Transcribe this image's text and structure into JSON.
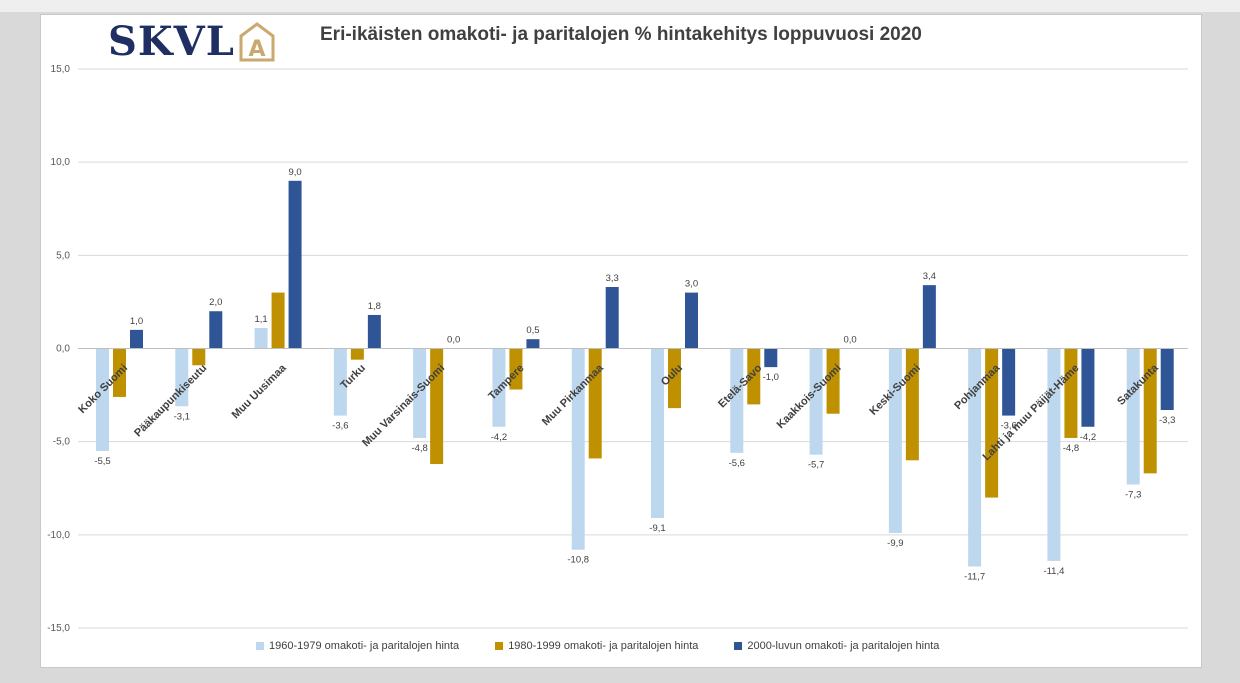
{
  "brand": {
    "logo_text": "SKVL",
    "logo_mark": "A"
  },
  "chart_data": {
    "type": "bar",
    "title": "Eri-ikäisten omakoti- ja paritalojen % hintakehitys loppuvuosi 2020",
    "ylim": [
      -15,
      15
    ],
    "yticks": [
      "15,0",
      "10,0",
      "5,0",
      "0,0",
      "-5,0",
      "-10,0",
      "-15,0"
    ],
    "ytick_values": [
      15,
      10,
      5,
      0,
      -5,
      -10,
      -15
    ],
    "categories": [
      "Koko Suomi",
      "Pääkaupunkiseutu",
      "Muu Uusimaa",
      "Turku",
      "Muu Varsinais-Suomi",
      "Tampere",
      "Muu Pirkanmaa",
      "Oulu",
      "Etelä-Savo",
      "Kaakkois-Suomi",
      "Keski-Suomi",
      "Pohjanmaa",
      "Lahti ja muu Päijät-Häme",
      "Satakunta"
    ],
    "series": [
      {
        "name": "1960-1979 omakoti- ja paritalojen hinta",
        "color": "#bdd7ee",
        "values": [
          -5.5,
          -3.1,
          1.1,
          -3.6,
          -4.8,
          -4.2,
          -10.8,
          -9.1,
          -5.6,
          -5.7,
          -9.9,
          -11.7,
          -11.4,
          -7.3
        ],
        "labels": [
          "-5,5",
          "-3,1",
          "1,1",
          "-3,6",
          "-4,8",
          "-4,2",
          "-10,8",
          "-9,1",
          "-5,6",
          "-5,7",
          "-9,9",
          "-11,7",
          "-11,4",
          "-7,3"
        ]
      },
      {
        "name": "1980-1999 omakoti- ja paritalojen hinta",
        "color": "#bf9000",
        "values": [
          -2.6,
          -0.9,
          3.0,
          -0.6,
          -6.2,
          -2.2,
          -5.9,
          -3.2,
          -3.0,
          -3.5,
          -6.0,
          -8.0,
          -4.8,
          -6.7
        ],
        "labels": [
          "",
          "",
          "",
          "",
          "",
          "",
          "",
          "",
          "",
          "",
          "",
          "",
          "-4,8",
          ""
        ]
      },
      {
        "name": "2000-luvun omakoti- ja paritalojen hinta",
        "color": "#2f5597",
        "values": [
          1.0,
          2.0,
          9.0,
          1.8,
          0.0,
          0.5,
          3.3,
          3.0,
          -1.0,
          0.0,
          3.4,
          -3.6,
          -4.2,
          -3.3
        ],
        "labels": [
          "1,0",
          "2,0",
          "9,0",
          "1,8",
          "0,0",
          "0,5",
          "3,3",
          "3,0",
          "-1,0",
          "0,0",
          "3,4",
          "-3,6",
          "-4,2",
          "-3,3"
        ]
      }
    ]
  }
}
